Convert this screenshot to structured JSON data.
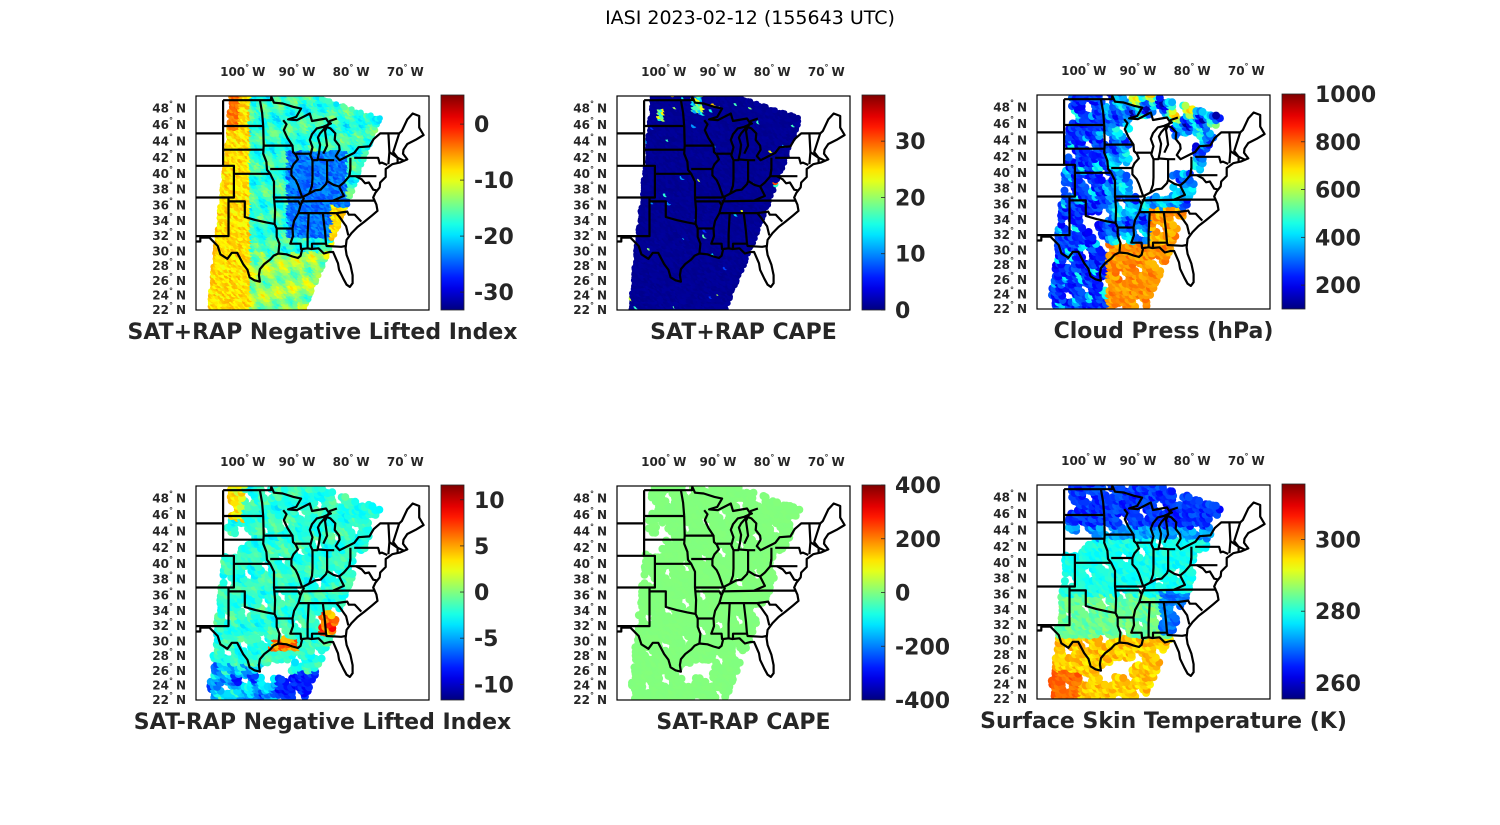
{
  "figure_title": "IASI 2023-02-12 (155643 UTC)",
  "chart_data": [
    {
      "type": "heatmap",
      "title": "SAT+RAP Negative Lifted Index",
      "colormap": "jet",
      "clim": [
        -33.2,
        5.2
      ],
      "colorbar_ticks": [
        "0",
        "-10",
        "-20",
        "-30"
      ],
      "colorbar_tick_values": [
        0,
        -10,
        -20,
        -30
      ],
      "x_ticks": [
        "100",
        "90",
        "80",
        "70"
      ],
      "x_tick_unit": "W",
      "y_ticks": [
        "48",
        "46",
        "44",
        "42",
        "40",
        "38",
        "36",
        "34",
        "32",
        "30",
        "28",
        "26",
        "24",
        "22"
      ],
      "y_tick_unit": "N",
      "degree_symbol": "°",
      "coverage": "full-swath",
      "field": "lifted_index",
      "description_values": {
        "west": -8,
        "central": -22,
        "east": -16
      }
    },
    {
      "type": "heatmap",
      "title": "SAT+RAP CAPE",
      "colormap": "jet",
      "clim": [
        0,
        38.2
      ],
      "colorbar_ticks": [
        "30",
        "20",
        "10",
        "0"
      ],
      "colorbar_tick_values": [
        30,
        20,
        10,
        0
      ],
      "x_ticks": [
        "100",
        "90",
        "80",
        "70"
      ],
      "x_tick_unit": "W",
      "y_ticks": [
        "48",
        "46",
        "44",
        "42",
        "40",
        "38",
        "36",
        "34",
        "32",
        "30",
        "28",
        "26",
        "24",
        "22"
      ],
      "y_tick_unit": "N",
      "degree_symbol": "°",
      "coverage": "full-swath",
      "field": "cape",
      "description_values": {
        "background": 0,
        "max": 30
      }
    },
    {
      "type": "heatmap",
      "title": "Cloud Press (hPa)",
      "colormap": "jet",
      "clim": [
        100,
        1000
      ],
      "colorbar_ticks": [
        "1000",
        "800",
        "600",
        "400",
        "200"
      ],
      "colorbar_tick_values": [
        1000,
        800,
        600,
        400,
        200
      ],
      "x_ticks": [
        "100",
        "90",
        "80",
        "70"
      ],
      "x_tick_unit": "W",
      "y_ticks": [
        "48",
        "46",
        "44",
        "42",
        "40",
        "38",
        "36",
        "34",
        "32",
        "30",
        "28",
        "26",
        "24",
        "22"
      ],
      "y_tick_unit": "N",
      "degree_symbol": "°",
      "coverage": "cloudy",
      "field": "cloud_press",
      "description_values": {
        "high_cloud": 250,
        "low_cloud": 800
      }
    },
    {
      "type": "heatmap",
      "title": "SAT-RAP Negative Lifted Index",
      "colormap": "jet",
      "clim": [
        -11.7,
        11.6
      ],
      "colorbar_ticks": [
        "10",
        "5",
        "0",
        "-5",
        "-10"
      ],
      "colorbar_tick_values": [
        10,
        5,
        0,
        -5,
        -10
      ],
      "x_ticks": [
        "100",
        "90",
        "80",
        "70"
      ],
      "x_tick_unit": "W",
      "y_ticks": [
        "48",
        "46",
        "44",
        "42",
        "40",
        "38",
        "36",
        "34",
        "32",
        "30",
        "28",
        "26",
        "24",
        "22"
      ],
      "y_tick_unit": "N",
      "degree_symbol": "°",
      "coverage": "clear",
      "field": "li_diff",
      "description_values": {
        "typical": -2,
        "min": -10,
        "max": 8
      }
    },
    {
      "type": "heatmap",
      "title": "SAT-RAP CAPE",
      "colormap": "jet",
      "clim": [
        -400,
        400
      ],
      "colorbar_ticks": [
        "400",
        "200",
        "0",
        "-200",
        "-400"
      ],
      "colorbar_tick_values": [
        400,
        200,
        0,
        -200,
        -400
      ],
      "x_ticks": [
        "100",
        "90",
        "80",
        "70"
      ],
      "x_tick_unit": "W",
      "y_ticks": [
        "48",
        "46",
        "44",
        "42",
        "40",
        "38",
        "36",
        "34",
        "32",
        "30",
        "28",
        "26",
        "24",
        "22"
      ],
      "y_tick_unit": "N",
      "degree_symbol": "°",
      "coverage": "clear",
      "field": "cape_diff",
      "description_values": {
        "typical": 0
      }
    },
    {
      "type": "heatmap",
      "title": "Surface Skin Temperature (K)",
      "colormap": "jet",
      "clim": [
        255.5,
        315.5
      ],
      "colorbar_ticks": [
        "300",
        "280",
        "260"
      ],
      "colorbar_tick_values": [
        300,
        280,
        260
      ],
      "x_ticks": [
        "100",
        "90",
        "80",
        "70"
      ],
      "x_tick_unit": "W",
      "y_ticks": [
        "48",
        "46",
        "44",
        "42",
        "40",
        "38",
        "36",
        "34",
        "32",
        "30",
        "28",
        "26",
        "24",
        "22"
      ],
      "y_tick_unit": "N",
      "degree_symbol": "°",
      "coverage": "clear",
      "field": "skin_temp",
      "description_values": {
        "north": 265,
        "central": 280,
        "gulf": 298
      }
    }
  ]
}
